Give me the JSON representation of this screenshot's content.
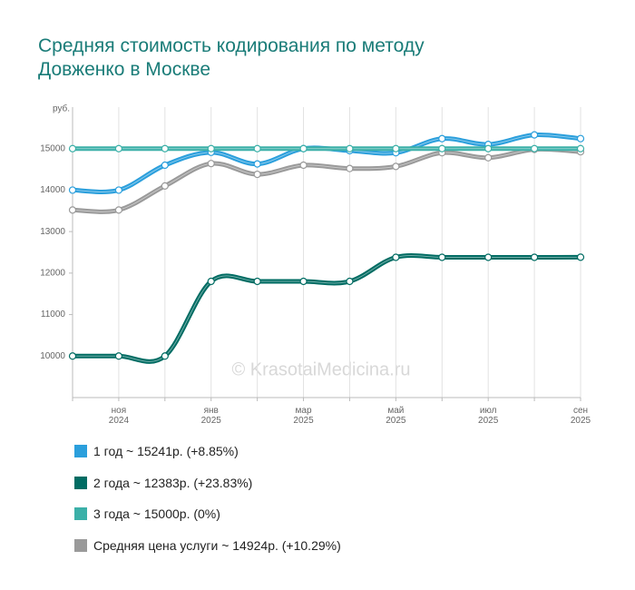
{
  "chart_data": {
    "type": "line",
    "title": "Средняя стоимость кодирования по методу Довженко в Москве",
    "y_label": "руб.",
    "watermark": "© KrasotaiMedicina.ru",
    "categories": [
      null,
      "ноя\n2024",
      null,
      "янв\n2025",
      null,
      "мар\n2025",
      null,
      "май\n2025",
      null,
      "июл\n2025",
      null,
      "сен\n2025"
    ],
    "ylim": [
      9000,
      16000
    ],
    "yticks": [
      10000,
      11000,
      12000,
      13000,
      14000,
      15000
    ],
    "grid": true,
    "series": [
      {
        "name": "1 год ~ 15241р. (+8.85%)",
        "color": "#2b9fdc",
        "values": [
          14000,
          14000,
          14600,
          14910,
          14630,
          15000,
          14950,
          14900,
          15240,
          15100,
          15330,
          15241
        ]
      },
      {
        "name": "2 года ~ 12383р. (+23.83%)",
        "color": "#006c63",
        "values": [
          10000,
          10000,
          10000,
          11800,
          11800,
          11800,
          11800,
          12380,
          12380,
          12380,
          12380,
          12383
        ]
      },
      {
        "name": "3 года ~ 15000р. (0%)",
        "color": "#3bb0a8",
        "values": [
          15000,
          15000,
          15000,
          15000,
          15000,
          15000,
          15000,
          15000,
          15000,
          15000,
          15000,
          15000
        ]
      },
      {
        "name": "Средняя цена услуги ~ 14924р. (+10.29%)",
        "color": "#9a9a9a",
        "values": [
          13520,
          13520,
          14100,
          14640,
          14380,
          14600,
          14520,
          14570,
          14900,
          14780,
          14980,
          14924
        ]
      }
    ]
  }
}
